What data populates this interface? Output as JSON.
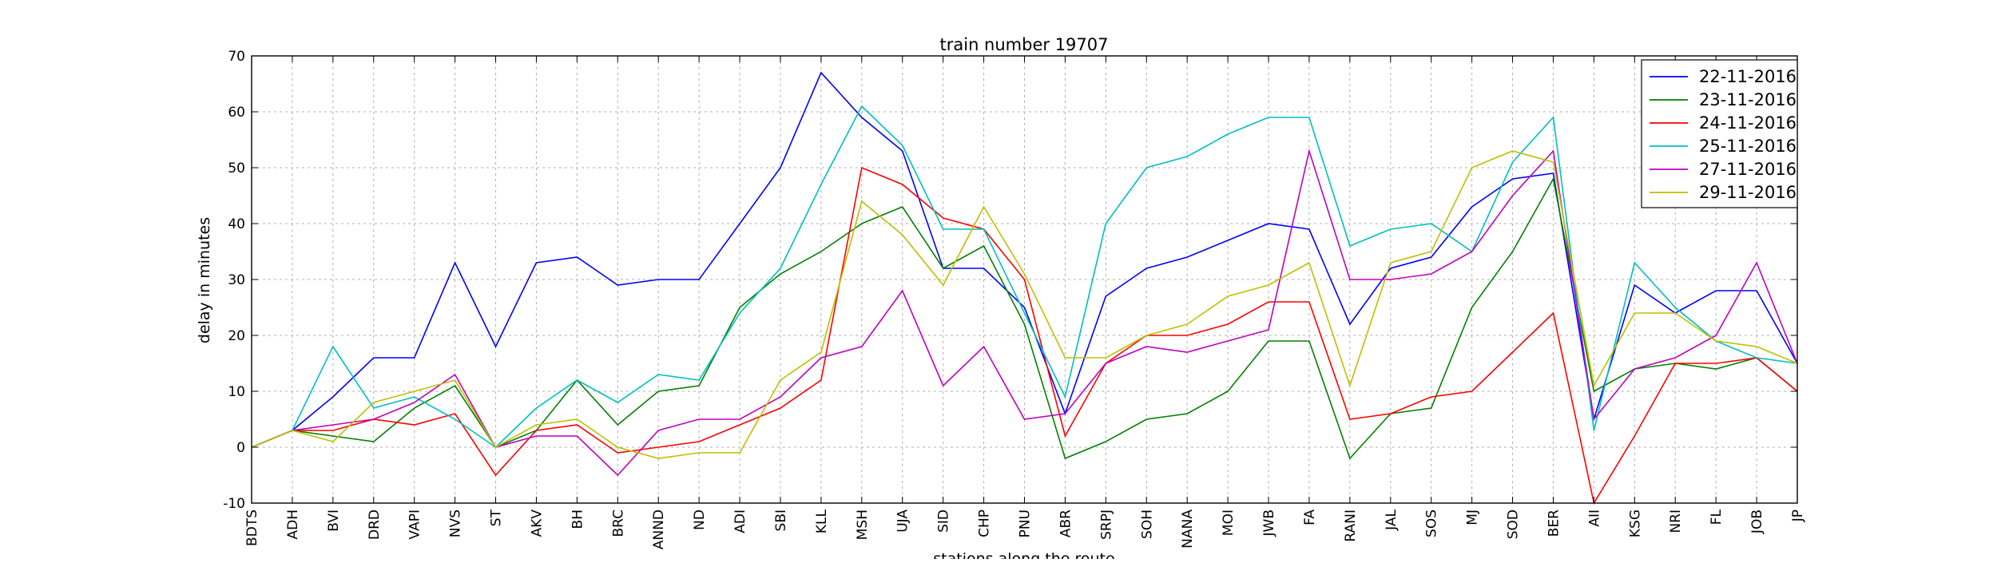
{
  "chart_data": {
    "type": "line",
    "title": "train number 19707",
    "xlabel": "stations along the route",
    "ylabel": "delay in minutes",
    "ylim": [
      -10,
      70
    ],
    "yticks": [
      -10,
      0,
      10,
      20,
      30,
      40,
      50,
      60,
      70
    ],
    "grid": true,
    "legend_position": "top-right",
    "categories": [
      "BDTS",
      "ADH",
      "BVI",
      "DRD",
      "VAPI",
      "NVS",
      "ST",
      "AKV",
      "BH",
      "BRC",
      "ANND",
      "ND",
      "ADI",
      "SBI",
      "KLL",
      "MSH",
      "UJA",
      "SID",
      "CHP",
      "PNU",
      "ABR",
      "SRPJ",
      "SOH",
      "NANA",
      "MOI",
      "JWB",
      "FA",
      "RANI",
      "JAL",
      "SOS",
      "MJ",
      "SOD",
      "BER",
      "AII",
      "KSG",
      "NRI",
      "FL",
      "JOB",
      "JP"
    ],
    "series": [
      {
        "name": "22-11-2016",
        "color": "#0000ff",
        "values": [
          0,
          3,
          9,
          16,
          16,
          33,
          18,
          33,
          34,
          29,
          30,
          30,
          40,
          50,
          67,
          59,
          53,
          32,
          32,
          25,
          6,
          27,
          32,
          34,
          37,
          40,
          39,
          22,
          32,
          34,
          43,
          48,
          49,
          5,
          29,
          24,
          28,
          28,
          15
        ]
      },
      {
        "name": "23-11-2016",
        "color": "#008000",
        "values": [
          0,
          3,
          2,
          1,
          7,
          11,
          0,
          3,
          12,
          4,
          10,
          11,
          25,
          31,
          35,
          40,
          43,
          32,
          36,
          22,
          -2,
          1,
          5,
          6,
          10,
          19,
          19,
          -2,
          6,
          7,
          25,
          35,
          48,
          10,
          14,
          15,
          14,
          16,
          10
        ]
      },
      {
        "name": "24-11-2016",
        "color": "#ff0000",
        "values": [
          0,
          3,
          3,
          5,
          4,
          6,
          -5,
          3,
          4,
          -1,
          0,
          1,
          4,
          7,
          12,
          50,
          47,
          41,
          39,
          30,
          2,
          15,
          20,
          20,
          22,
          26,
          26,
          5,
          6,
          9,
          10,
          17,
          24,
          -10,
          2,
          15,
          15,
          16,
          10
        ]
      },
      {
        "name": "25-11-2016",
        "color": "#00bfbf",
        "values": [
          0,
          3,
          18,
          7,
          9,
          5,
          0,
          7,
          12,
          8,
          13,
          12,
          24,
          32,
          47,
          61,
          54,
          39,
          39,
          24,
          9,
          40,
          50,
          52,
          56,
          59,
          59,
          36,
          39,
          40,
          35,
          51,
          59,
          3,
          33,
          25,
          19,
          16,
          15
        ]
      },
      {
        "name": "27-11-2016",
        "color": "#bf00bf",
        "values": [
          0,
          3,
          4,
          5,
          8,
          13,
          0,
          2,
          2,
          -5,
          3,
          5,
          5,
          9,
          16,
          18,
          28,
          11,
          18,
          5,
          6,
          15,
          18,
          17,
          19,
          21,
          53,
          30,
          30,
          31,
          35,
          45,
          53,
          5,
          14,
          16,
          20,
          33,
          15
        ]
      },
      {
        "name": "29-11-2016",
        "color": "#bfbf00",
        "values": [
          0,
          3,
          1,
          8,
          10,
          12,
          0,
          4,
          5,
          0,
          -2,
          -1,
          -1,
          12,
          17,
          44,
          38,
          29,
          43,
          31,
          16,
          16,
          20,
          22,
          27,
          29,
          33,
          11,
          33,
          35,
          50,
          53,
          51,
          11,
          24,
          24,
          19,
          18,
          15
        ]
      }
    ]
  }
}
